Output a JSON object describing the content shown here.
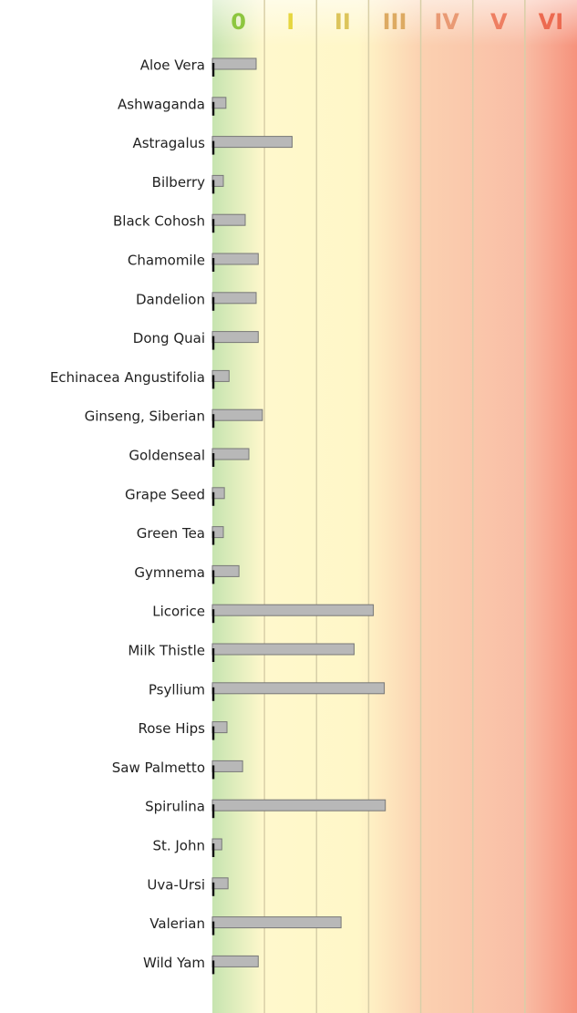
{
  "chart_data": {
    "type": "bar",
    "orientation": "horizontal",
    "bands": [
      {
        "label": "0",
        "color": "#8dc63f"
      },
      {
        "label": "I",
        "color": "#e6d640"
      },
      {
        "label": "II",
        "color": "#dcc45a"
      },
      {
        "label": "III",
        "color": "#ddaa62"
      },
      {
        "label": "IV",
        "color": "#e99a74"
      },
      {
        "label": "V",
        "color": "#ee7f62"
      },
      {
        "label": "VI",
        "color": "#ec6a50"
      }
    ],
    "xlim": [
      0,
      7
    ],
    "color": "#b8b8b8",
    "categories": [
      "Aloe Vera",
      "Ashwaganda",
      "Astragalus",
      "Bilberry",
      "Black Cohosh",
      "Chamomile",
      "Dandelion",
      "Dong Quai",
      "Echinacea Angustifolia",
      "Ginseng, Siberian",
      "Goldenseal",
      "Grape Seed",
      "Green Tea",
      "Gymnema",
      "Licorice",
      "Milk Thistle",
      "Psyllium",
      "Rose Hips",
      "Saw Palmetto",
      "Spirulina",
      "St. John",
      "Uva-Ursi",
      "Valerian",
      "Wild Yam"
    ],
    "values": [
      0.84,
      0.26,
      1.53,
      0.21,
      0.63,
      0.88,
      0.84,
      0.88,
      0.32,
      0.96,
      0.7,
      0.23,
      0.21,
      0.51,
      3.09,
      2.72,
      3.3,
      0.28,
      0.58,
      3.32,
      0.18,
      0.3,
      2.47,
      0.88
    ]
  }
}
